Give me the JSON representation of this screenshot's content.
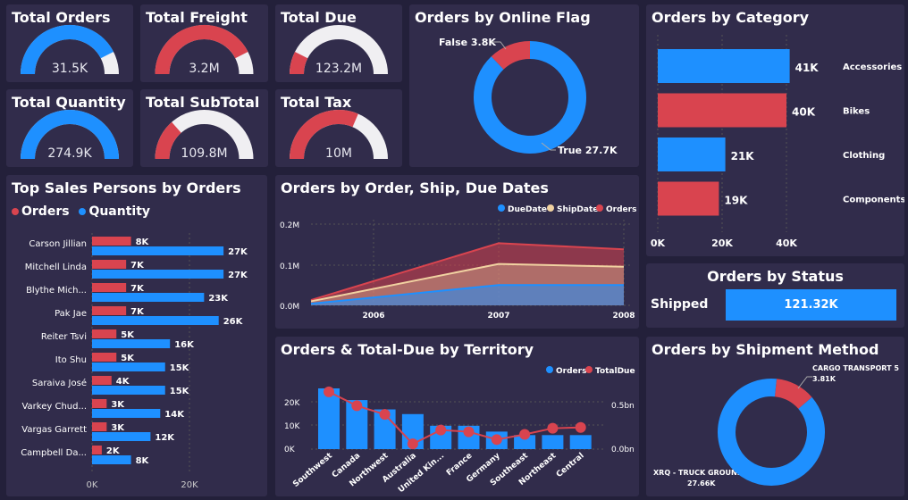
{
  "colors": {
    "blue": "#1e90ff",
    "red": "#d9444f",
    "white": "#f0eff2",
    "tan": "#f1d2a1",
    "bg": "#23203a",
    "card": "#312c4b"
  },
  "kpis": [
    {
      "title": "Total Orders",
      "value": "31.5K",
      "color": "blue",
      "fill": 0.85
    },
    {
      "title": "Total Freight",
      "value": "3.2M",
      "color": "red",
      "fill": 0.85
    },
    {
      "title": "Total Due",
      "value": "123.2M",
      "color": "red",
      "fill": 0.15
    },
    {
      "title": "Total Quantity",
      "value": "274.9K",
      "color": "blue",
      "fill": 1.0
    },
    {
      "title": "Total SubTotal",
      "value": "109.8M",
      "color": "red",
      "fill": 0.27
    },
    {
      "title": "Total Tax",
      "value": "10M",
      "color": "red",
      "fill": 0.63
    }
  ],
  "online_flag": {
    "title": "Orders by Online Flag",
    "false_label": "False 3.8K",
    "true_label": "True 27.7K"
  },
  "category": {
    "title": "Orders by Category",
    "axis_ticks": [
      "0K",
      "20K",
      "40K"
    ]
  },
  "sales_persons": {
    "title": "Top Sales Persons by Orders",
    "legend_orders": "Orders",
    "legend_quantity": "Quantity",
    "axis_ticks": [
      "0K",
      "20K"
    ]
  },
  "dates_chart": {
    "title": "Orders by Order, Ship, Due Dates",
    "legend": [
      "DueDate",
      "ShipDate",
      "Orders"
    ],
    "y_ticks": [
      "0.2M",
      "0.1M",
      "0.0M"
    ],
    "x_ticks": [
      "2006",
      "2007",
      "2008"
    ]
  },
  "status": {
    "title": "Orders by Status",
    "label": "Shipped",
    "value": "121.32K"
  },
  "territory": {
    "title": "Orders & Total-Due by Territory",
    "legend_orders": "Orders",
    "legend_totaldue": "TotalDue",
    "y_left_ticks": [
      "20K",
      "10K",
      "0K"
    ],
    "y_right_ticks": [
      "0.5bn",
      "0.0bn"
    ]
  },
  "shipment": {
    "title": "Orders by Shipment Method",
    "cargo_label": "CARGO TRANSPORT 5",
    "cargo_value": "3.81K",
    "xrq_label": "XRQ - TRUCK GROUND",
    "xrq_value": "27.66K"
  },
  "chart_data": [
    {
      "type": "bar",
      "title": "Orders by Category",
      "categories": [
        "Accessories",
        "Bikes",
        "Clothing",
        "Components"
      ],
      "values": [
        41,
        40,
        21,
        19
      ],
      "value_labels": [
        "41K",
        "40K",
        "21K",
        "19K"
      ],
      "xlim": [
        0,
        40
      ]
    },
    {
      "type": "bar",
      "title": "Top Sales Persons by Orders",
      "categories": [
        "Carson Jillian",
        "Mitchell Linda",
        "Blythe Mich...",
        "Pak Jae",
        "Reiter Tsvi",
        "Ito Shu",
        "Saraiva José",
        "Varkey Chud...",
        "Vargas Garrett",
        "Campbell Da..."
      ],
      "series": [
        {
          "name": "Orders",
          "values": [
            8,
            7,
            7,
            7,
            5,
            5,
            4,
            3,
            3,
            2
          ],
          "labels": [
            "8K",
            "7K",
            "7K",
            "7K",
            "5K",
            "5K",
            "4K",
            "3K",
            "3K",
            "2K"
          ]
        },
        {
          "name": "Quantity",
          "values": [
            27,
            27,
            23,
            26,
            16,
            15,
            15,
            14,
            12,
            8
          ],
          "labels": [
            "27K",
            "27K",
            "23K",
            "26K",
            "16K",
            "15K",
            "15K",
            "14K",
            "12K",
            "8K"
          ]
        }
      ]
    },
    {
      "type": "area",
      "title": "Orders by Order, Ship, Due Dates",
      "x": [
        2005.5,
        2007,
        2008
      ],
      "ylim": [
        0,
        0.2
      ],
      "series": [
        {
          "name": "Orders",
          "values": [
            0.013,
            0.153,
            0.138
          ]
        },
        {
          "name": "ShipDate",
          "values": [
            0.01,
            0.102,
            0.095
          ]
        },
        {
          "name": "DueDate",
          "values": [
            0.004,
            0.05,
            0.05
          ]
        }
      ]
    },
    {
      "type": "bar",
      "title": "Orders & Total-Due by Territory",
      "categories": [
        "Southwest",
        "Canada",
        "Northwest",
        "Australia",
        "United Kin...",
        "France",
        "Germany",
        "Southeast",
        "Northeast",
        "Central"
      ],
      "series": [
        {
          "name": "Orders",
          "values": [
            26,
            21,
            17,
            15,
            10,
            10,
            7.5,
            6,
            6,
            6
          ]
        },
        {
          "name": "TotalDue",
          "values": [
            0.66,
            0.5,
            0.4,
            0.06,
            0.22,
            0.2,
            0.11,
            0.17,
            0.24,
            0.25
          ]
        }
      ],
      "ylim_left": [
        0,
        27
      ],
      "ylim_right": [
        0,
        0.7
      ]
    },
    {
      "type": "pie",
      "title": "Orders by Online Flag",
      "labels": [
        "True",
        "False"
      ],
      "values": [
        27.7,
        3.8
      ]
    },
    {
      "type": "pie",
      "title": "Orders by Shipment Method",
      "labels": [
        "XRQ - TRUCK GROUND",
        "CARGO TRANSPORT 5"
      ],
      "values": [
        27.66,
        3.81
      ]
    }
  ]
}
